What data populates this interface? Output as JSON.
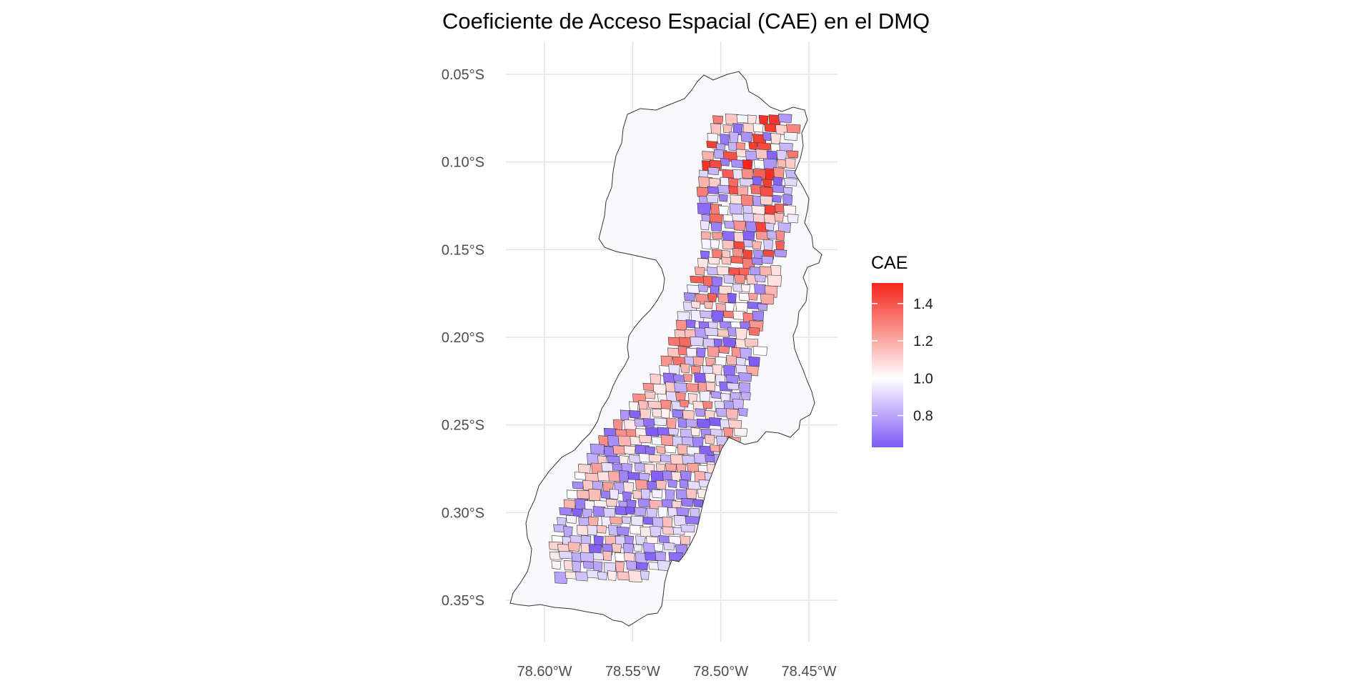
{
  "title": "Coeficiente de Acceso Espacial (CAE) en el DMQ",
  "axes": {
    "y": {
      "ticks": [
        {
          "value": -0.05,
          "label": "0.05°S"
        },
        {
          "value": -0.1,
          "label": "0.10°S"
        },
        {
          "value": -0.15,
          "label": "0.15°S"
        },
        {
          "value": -0.2,
          "label": "0.20°S"
        },
        {
          "value": -0.25,
          "label": "0.25°S"
        },
        {
          "value": -0.3,
          "label": "0.30°S"
        },
        {
          "value": -0.35,
          "label": "0.35°S"
        }
      ],
      "range": [
        -0.375,
        -0.04
      ]
    },
    "x": {
      "ticks": [
        {
          "value": -78.6,
          "label": "78.60°W"
        },
        {
          "value": -78.55,
          "label": "78.55°W"
        },
        {
          "value": -78.5,
          "label": "78.50°W"
        },
        {
          "value": -78.45,
          "label": "78.45°W"
        }
      ],
      "range": [
        -78.62,
        -78.434
      ]
    },
    "grid": true
  },
  "legend": {
    "title": "CAE",
    "position": "right",
    "min": 0.63,
    "max": 1.51,
    "ticks": [
      {
        "value": 1.4,
        "label": "1.4"
      },
      {
        "value": 1.2,
        "label": "1.2"
      },
      {
        "value": 1.0,
        "label": "1.0"
      },
      {
        "value": 0.8,
        "label": "0.8"
      }
    ],
    "colors": {
      "low": "#7f5af5",
      "mid": "#ffffff",
      "high": "#f5261b"
    }
  },
  "map": {
    "background_fill": "#f9f9fc",
    "border_color": "#333333"
  }
}
